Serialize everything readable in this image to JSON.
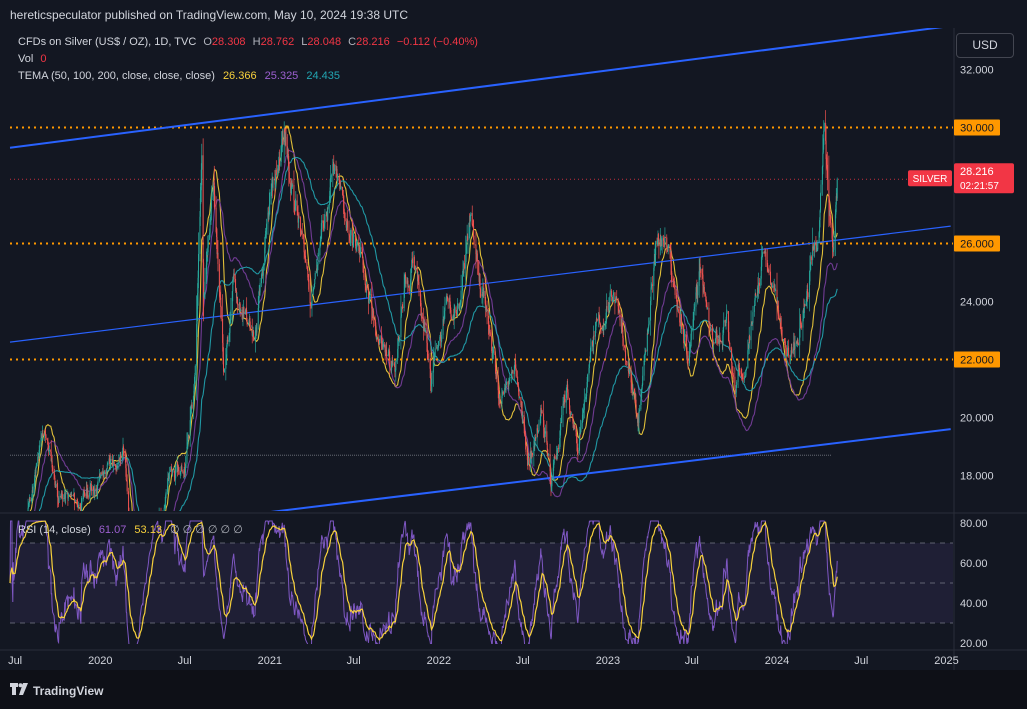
{
  "header": {
    "publish_line": "hereticspeculator published on TradingView.com, May 10, 2024 19:38 UTC"
  },
  "legend": {
    "symbol": "CFDs on Silver (US$ / OZ), 1D, TVC",
    "open_label": "O",
    "open": "28.308",
    "high_label": "H",
    "high": "28.762",
    "low_label": "L",
    "low": "28.048",
    "close_label": "C",
    "close": "28.216",
    "change": "−0.112 (−0.40%)",
    "vol_label": "Vol",
    "vol": "0",
    "tema_label": "TEMA (50, 100, 200, close, close, close)",
    "tema1": "26.366",
    "tema2": "25.325",
    "tema3": "24.435",
    "rsi_label": "RSI (14, close)",
    "rsi_value": "61.07",
    "rsi_ma": "53.13",
    "rsi_extra": "∅ ∅ ∅ ∅ ∅ ∅"
  },
  "currency": "USD",
  "price_tag": {
    "symbol": "SILVER",
    "price": "28.216",
    "countdown": "02:21:57"
  },
  "colors": {
    "background": "#131722",
    "bull": "#26a69a",
    "bear": "#ef5350",
    "trendline": "#2962ff",
    "level": "#ff9800",
    "tema1": "#f7d13c",
    "tema2": "#9c27b0",
    "tema3": "#22a6b3",
    "rsi": "#7e57c2",
    "rsi_ma": "#f7d13c",
    "price_tag": "#f23645"
  },
  "footer": {
    "brand": "TradingView",
    "logo_icon": "tradingview-logo-icon"
  },
  "chart_data": {
    "type": "candlestick",
    "title": "CFDs on Silver (US$ / OZ), 1D, TVC",
    "price_axis": {
      "ticks": [
        32.0,
        30.0,
        28.0,
        26.0,
        24.0,
        22.0,
        20.0,
        18.0
      ],
      "tick_labels": [
        "32.000",
        "30.000",
        "26.000",
        "24.000",
        "22.000",
        "20.000",
        "18.000"
      ],
      "ylim": [
        16.6,
        33.5
      ]
    },
    "time_axis": {
      "tick_labels": [
        "Jul",
        "2020",
        "Jul",
        "2021",
        "Jul",
        "2022",
        "Jul",
        "2023",
        "Jul",
        "2024",
        "Jul",
        "2025"
      ],
      "tick_dates": [
        "2019-07-01",
        "2020-01-01",
        "2020-07-01",
        "2021-01-01",
        "2021-07-01",
        "2022-01-01",
        "2022-07-01",
        "2023-01-01",
        "2023-07-01",
        "2024-01-01",
        "2024-07-01",
        "2025-01-01"
      ],
      "xlim": [
        "2019-06-20",
        "2025-01-15"
      ]
    },
    "horizontal_levels": [
      {
        "price": 30.0,
        "label": "30.000"
      },
      {
        "price": 26.0,
        "label": "26.000"
      },
      {
        "price": 22.0,
        "label": "22.000"
      }
    ],
    "last_price_line": 28.216,
    "reference_line": 18.7,
    "trendlines": [
      {
        "name": "upper channel",
        "points": [
          [
            "2019-06-20",
            29.3
          ],
          [
            "2025-01-10",
            33.5
          ]
        ]
      },
      {
        "name": "middle channel",
        "points": [
          [
            "2019-06-20",
            22.6
          ],
          [
            "2025-01-10",
            26.6
          ]
        ]
      },
      {
        "name": "lower channel",
        "points": [
          [
            "2020-09-01",
            16.5
          ],
          [
            "2025-01-10",
            19.6
          ]
        ]
      }
    ],
    "price_path": [
      [
        "2019-06-20",
        15.2
      ],
      [
        "2019-07-15",
        15.9
      ],
      [
        "2019-09-04",
        19.5
      ],
      [
        "2019-10-01",
        17.4
      ],
      [
        "2019-11-15",
        17.0
      ],
      [
        "2019-12-31",
        17.9
      ],
      [
        "2020-02-24",
        18.9
      ],
      [
        "2020-03-18",
        12.0
      ],
      [
        "2020-04-15",
        15.3
      ],
      [
        "2020-05-29",
        17.9
      ],
      [
        "2020-06-30",
        18.2
      ],
      [
        "2020-07-21",
        21.0
      ],
      [
        "2020-08-07",
        29.2
      ],
      [
        "2020-08-11",
        24.3
      ],
      [
        "2020-09-01",
        28.1
      ],
      [
        "2020-09-24",
        21.7
      ],
      [
        "2020-10-15",
        24.5
      ],
      [
        "2020-11-30",
        22.6
      ],
      [
        "2021-01-04",
        27.4
      ],
      [
        "2021-02-01",
        29.7
      ],
      [
        "2021-03-31",
        24.2
      ],
      [
        "2021-04-20",
        26.2
      ],
      [
        "2021-05-18",
        28.3
      ],
      [
        "2021-06-30",
        26.0
      ],
      [
        "2021-07-20",
        25.4
      ],
      [
        "2021-08-10",
        23.3
      ],
      [
        "2021-09-29",
        21.5
      ],
      [
        "2021-10-20",
        24.7
      ],
      [
        "2021-11-15",
        25.3
      ],
      [
        "2021-12-15",
        21.6
      ],
      [
        "2022-01-15",
        23.8
      ],
      [
        "2022-02-15",
        23.6
      ],
      [
        "2022-03-08",
        26.8
      ],
      [
        "2022-04-05",
        24.5
      ],
      [
        "2022-05-13",
        20.5
      ],
      [
        "2022-06-15",
        21.5
      ],
      [
        "2022-07-15",
        18.5
      ],
      [
        "2022-08-12",
        20.5
      ],
      [
        "2022-09-01",
        17.6
      ],
      [
        "2022-10-04",
        21.2
      ],
      [
        "2022-10-28",
        18.9
      ],
      [
        "2022-12-05",
        23.3
      ],
      [
        "2023-01-15",
        24.0
      ],
      [
        "2023-03-08",
        20.0
      ],
      [
        "2023-04-14",
        26.0
      ],
      [
        "2023-05-04",
        26.1
      ],
      [
        "2023-06-23",
        22.1
      ],
      [
        "2023-07-20",
        25.0
      ],
      [
        "2023-08-15",
        22.3
      ],
      [
        "2023-09-15",
        23.5
      ],
      [
        "2023-10-03",
        20.7
      ],
      [
        "2023-11-15",
        24.0
      ],
      [
        "2023-12-04",
        25.8
      ],
      [
        "2023-12-22",
        24.2
      ],
      [
        "2024-01-22",
        22.0
      ],
      [
        "2024-02-15",
        22.7
      ],
      [
        "2024-03-12",
        25.0
      ],
      [
        "2024-04-01",
        26.5
      ],
      [
        "2024-04-12",
        29.8
      ],
      [
        "2024-04-23",
        27.1
      ],
      [
        "2024-05-02",
        26.4
      ],
      [
        "2024-05-10",
        28.2
      ]
    ],
    "series": [
      {
        "name": "TEMA 50",
        "last": 26.366
      },
      {
        "name": "TEMA 100",
        "last": 25.325
      },
      {
        "name": "TEMA 200",
        "last": 24.435
      }
    ],
    "rsi": {
      "name": "RSI (14, close)",
      "last": 61.07,
      "ma_last": 53.13,
      "ylim": [
        18,
        82
      ],
      "ticks": [
        80.0,
        60.0,
        40.0,
        20.0
      ],
      "tick_labels": [
        "80.00",
        "60.00",
        "40.00",
        "20.00"
      ],
      "band": [
        30,
        70
      ],
      "midline": 50
    }
  }
}
